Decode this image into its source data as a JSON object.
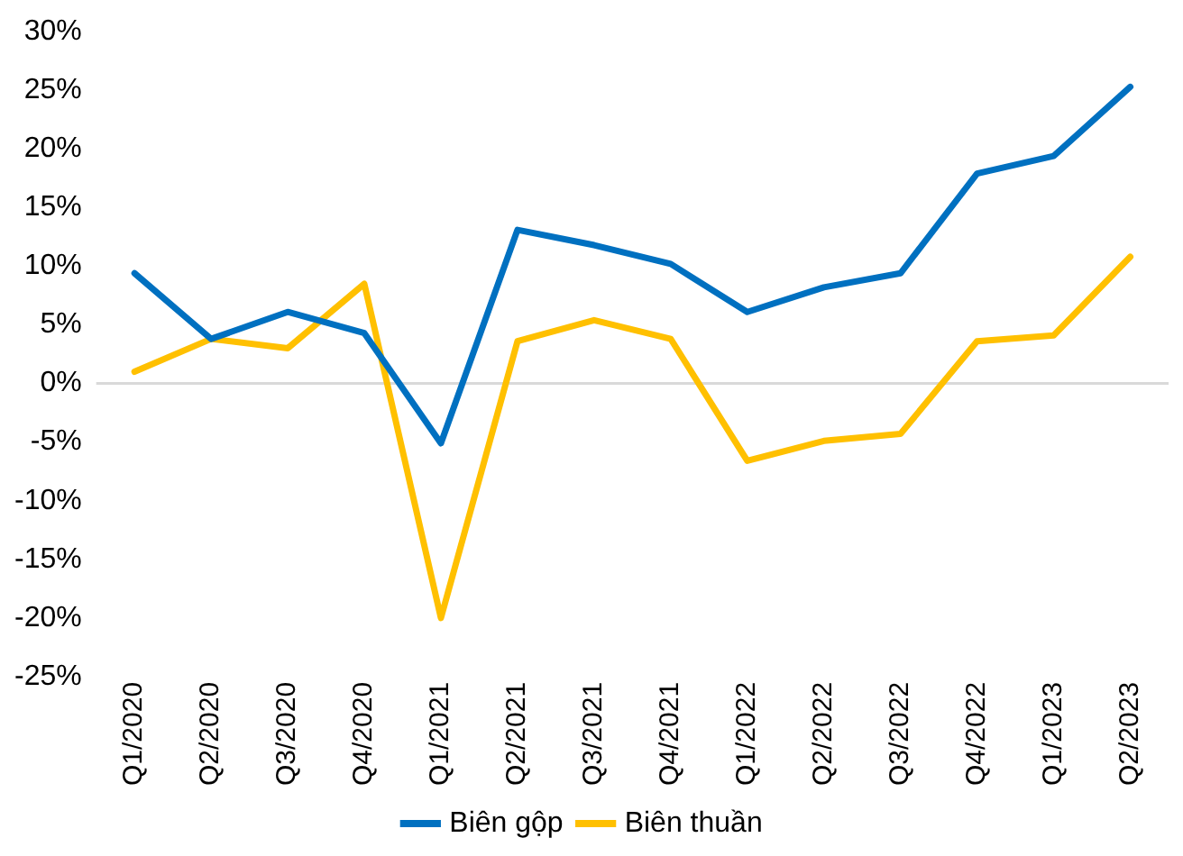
{
  "chart_data": {
    "type": "line",
    "categories": [
      "Q1/2020",
      "Q2/2020",
      "Q3/2020",
      "Q4/2020",
      "Q1/2021",
      "Q2/2021",
      "Q3/2021",
      "Q4/2021",
      "Q1/2022",
      "Q2/2022",
      "Q3/2022",
      "Q4/2022",
      "Q1/2023",
      "Q2/2023"
    ],
    "series": [
      {
        "name": "Biên gộp",
        "color": "#0070c0",
        "values": [
          9.4,
          3.8,
          6.1,
          4.3,
          -5.1,
          13.1,
          11.8,
          10.2,
          6.1,
          8.2,
          9.4,
          17.9,
          19.4,
          25.3
        ]
      },
      {
        "name": "Biên thuần",
        "color": "#ffc000",
        "values": [
          1.0,
          3.8,
          3.0,
          8.5,
          -20.0,
          3.6,
          5.4,
          3.8,
          -6.6,
          -4.9,
          -4.3,
          3.6,
          4.1,
          10.8
        ]
      }
    ],
    "ylim": [
      -25,
      30
    ],
    "yticks": [
      {
        "value": -25,
        "label": "-25%"
      },
      {
        "value": -20,
        "label": "-20%"
      },
      {
        "value": -15,
        "label": "-15%"
      },
      {
        "value": -10,
        "label": "-10%"
      },
      {
        "value": -5,
        "label": "-5%"
      },
      {
        "value": 0,
        "label": "0%"
      },
      {
        "value": 5,
        "label": "5%"
      },
      {
        "value": 10,
        "label": "10%"
      },
      {
        "value": 15,
        "label": "15%"
      },
      {
        "value": 20,
        "label": "20%"
      },
      {
        "value": 25,
        "label": "25%"
      },
      {
        "value": 30,
        "label": "30%"
      }
    ],
    "ref_lines": [
      {
        "axis": "y",
        "value": 0,
        "color": "#d9d9d9"
      }
    ],
    "grid": false,
    "legend": "bottom",
    "marker": "none",
    "line_style": "solid"
  }
}
